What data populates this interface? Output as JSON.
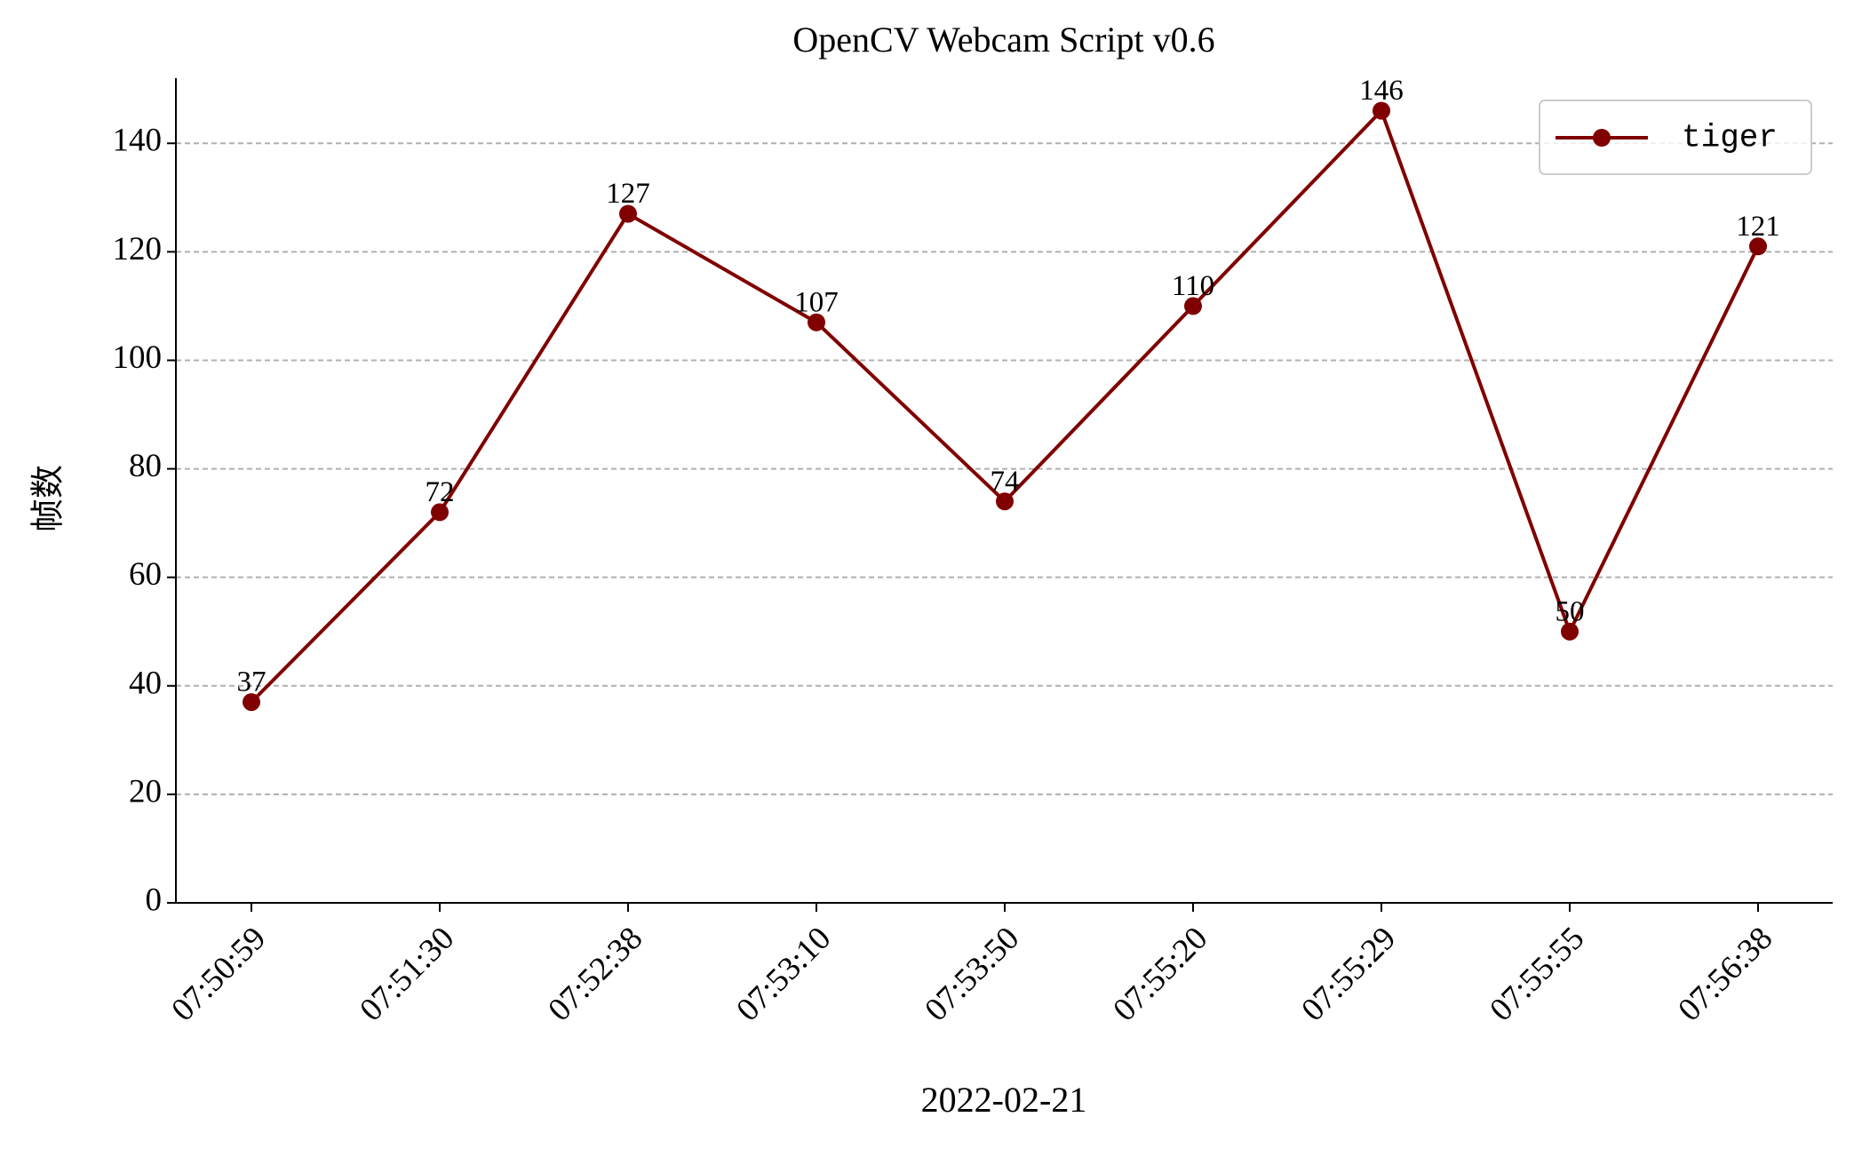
{
  "chart_data": {
    "type": "line",
    "title": "OpenCV Webcam Script v0.6",
    "xlabel": "2022-02-21",
    "ylabel": "帧数",
    "categories": [
      "07:50:59",
      "07:51:30",
      "07:52:38",
      "07:53:10",
      "07:53:50",
      "07:55:20",
      "07:55:29",
      "07:55:55",
      "07:56:38"
    ],
    "series": [
      {
        "name": "tiger",
        "color": "#800000",
        "values": [
          37,
          72,
          127,
          107,
          74,
          110,
          146,
          50,
          121
        ]
      }
    ],
    "ylim": [
      0,
      152
    ],
    "yticks": [
      0,
      20,
      40,
      60,
      80,
      100,
      120,
      140
    ],
    "grid": true,
    "legend": "upper right"
  }
}
